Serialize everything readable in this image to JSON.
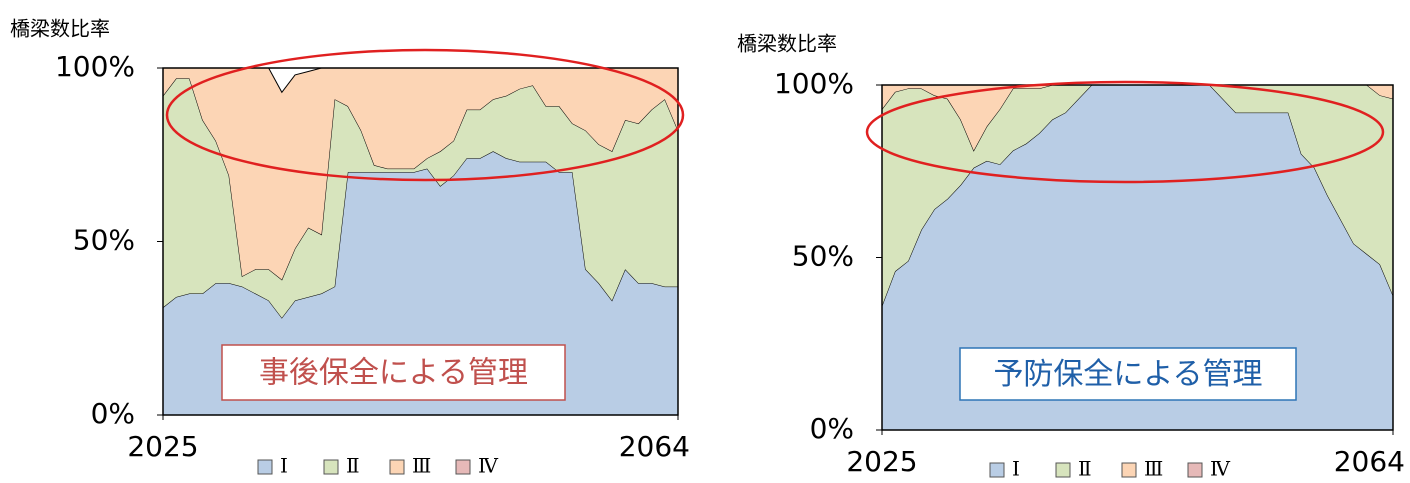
{
  "chart_data": [
    {
      "type": "area",
      "ylabel": "橋梁数比率",
      "annotation": "事後保全による管理",
      "x": [
        2025,
        2026,
        2027,
        2028,
        2029,
        2030,
        2031,
        2032,
        2033,
        2034,
        2035,
        2036,
        2037,
        2038,
        2039,
        2040,
        2041,
        2042,
        2043,
        2044,
        2045,
        2046,
        2047,
        2048,
        2049,
        2050,
        2051,
        2052,
        2053,
        2054,
        2055,
        2056,
        2057,
        2058,
        2059,
        2060,
        2061,
        2062,
        2063,
        2064
      ],
      "xlim": [
        2025,
        2064
      ],
      "xticks": [
        2025,
        2064
      ],
      "ylim": [
        0,
        100
      ],
      "yticks": [
        {
          "value": 0,
          "label": "0%"
        },
        {
          "value": 50,
          "label": "50%"
        },
        {
          "value": 100,
          "label": "100%"
        }
      ],
      "series": [
        {
          "name": "Ⅰ",
          "color": "#b9cde5",
          "values": [
            31,
            34,
            35,
            35,
            38,
            38,
            37,
            35,
            33,
            28,
            33,
            34,
            35,
            37,
            70,
            70,
            70,
            70,
            70,
            70,
            71,
            66,
            69,
            74,
            74,
            76,
            74,
            73,
            73,
            73,
            70,
            70,
            42,
            38,
            33,
            42,
            38,
            38,
            37,
            37
          ]
        },
        {
          "name": "Ⅱ",
          "color": "#d7e4bd",
          "values": [
            61,
            63,
            62,
            50,
            41,
            31,
            3,
            7,
            9,
            11,
            15,
            20,
            17,
            54,
            19,
            12,
            2,
            1,
            1,
            1,
            3,
            10,
            10,
            14,
            14,
            15,
            18,
            21,
            22,
            16,
            19,
            14,
            40,
            40,
            43,
            43,
            46,
            50,
            54,
            45
          ]
        },
        {
          "name": "Ⅲ",
          "color": "#fcd5b5",
          "values": [
            8,
            3,
            3,
            15,
            21,
            31,
            60,
            58,
            58,
            54,
            50,
            45,
            48,
            9,
            11,
            18,
            28,
            29,
            29,
            29,
            26,
            24,
            21,
            12,
            12,
            9,
            8,
            6,
            5,
            11,
            11,
            16,
            18,
            22,
            24,
            15,
            16,
            12,
            9,
            18
          ]
        },
        {
          "name": "Ⅳ",
          "color": "#e6b9b8",
          "values": [
            0,
            0,
            0,
            0,
            0,
            0,
            0,
            0,
            0,
            0,
            0,
            0,
            0,
            0,
            0,
            0,
            0,
            0,
            0,
            0,
            0,
            0,
            0,
            0,
            0,
            0,
            0,
            0,
            0,
            0,
            0,
            0,
            0,
            0,
            0,
            0,
            0,
            0,
            0,
            0
          ]
        }
      ]
    },
    {
      "type": "area",
      "ylabel": "橋梁数比率",
      "annotation": "予防保全による管理",
      "x": [
        2025,
        2026,
        2027,
        2028,
        2029,
        2030,
        2031,
        2032,
        2033,
        2034,
        2035,
        2036,
        2037,
        2038,
        2039,
        2040,
        2041,
        2042,
        2043,
        2044,
        2045,
        2046,
        2047,
        2048,
        2049,
        2050,
        2051,
        2052,
        2053,
        2054,
        2055,
        2056,
        2057,
        2058,
        2059,
        2060,
        2061,
        2062,
        2063,
        2064
      ],
      "xlim": [
        2025,
        2064
      ],
      "xticks": [
        2025,
        2064
      ],
      "ylim": [
        0,
        100
      ],
      "yticks": [
        {
          "value": 0,
          "label": "0%"
        },
        {
          "value": 50,
          "label": "50%"
        },
        {
          "value": 100,
          "label": "100%"
        }
      ],
      "series": [
        {
          "name": "Ⅰ",
          "color": "#b9cde5",
          "values": [
            36,
            46,
            49,
            58,
            64,
            67,
            71,
            76,
            78,
            77,
            81,
            83,
            86,
            90,
            92,
            96,
            100,
            100,
            100,
            100,
            100,
            100,
            100,
            100,
            100,
            100,
            96,
            92,
            92,
            92,
            92,
            92,
            80,
            76,
            68,
            61,
            54,
            51,
            48,
            39
          ]
        },
        {
          "name": "Ⅱ",
          "color": "#d7e4bd",
          "values": [
            57,
            52,
            50,
            41,
            33,
            29,
            19,
            5,
            10,
            16,
            18,
            16,
            13,
            10,
            8,
            4,
            0,
            0,
            0,
            0,
            0,
            0,
            0,
            0,
            0,
            0,
            4,
            8,
            8,
            8,
            8,
            8,
            20,
            24,
            32,
            39,
            46,
            49,
            49,
            57
          ]
        },
        {
          "name": "Ⅲ",
          "color": "#fcd5b5",
          "values": [
            7,
            2,
            1,
            1,
            3,
            4,
            10,
            19,
            12,
            7,
            1,
            1,
            1,
            0,
            0,
            0,
            0,
            0,
            0,
            0,
            0,
            0,
            0,
            0,
            0,
            0,
            0,
            0,
            0,
            0,
            0,
            0,
            0,
            0,
            0,
            0,
            0,
            0,
            3,
            4
          ]
        },
        {
          "name": "Ⅳ",
          "color": "#e6b9b8",
          "values": [
            0,
            0,
            0,
            0,
            0,
            0,
            0,
            0,
            0,
            0,
            0,
            0,
            0,
            0,
            0,
            0,
            0,
            0,
            0,
            0,
            0,
            0,
            0,
            0,
            0,
            0,
            0,
            0,
            0,
            0,
            0,
            0,
            0,
            0,
            0,
            0,
            0,
            0,
            0,
            0
          ]
        }
      ]
    }
  ]
}
